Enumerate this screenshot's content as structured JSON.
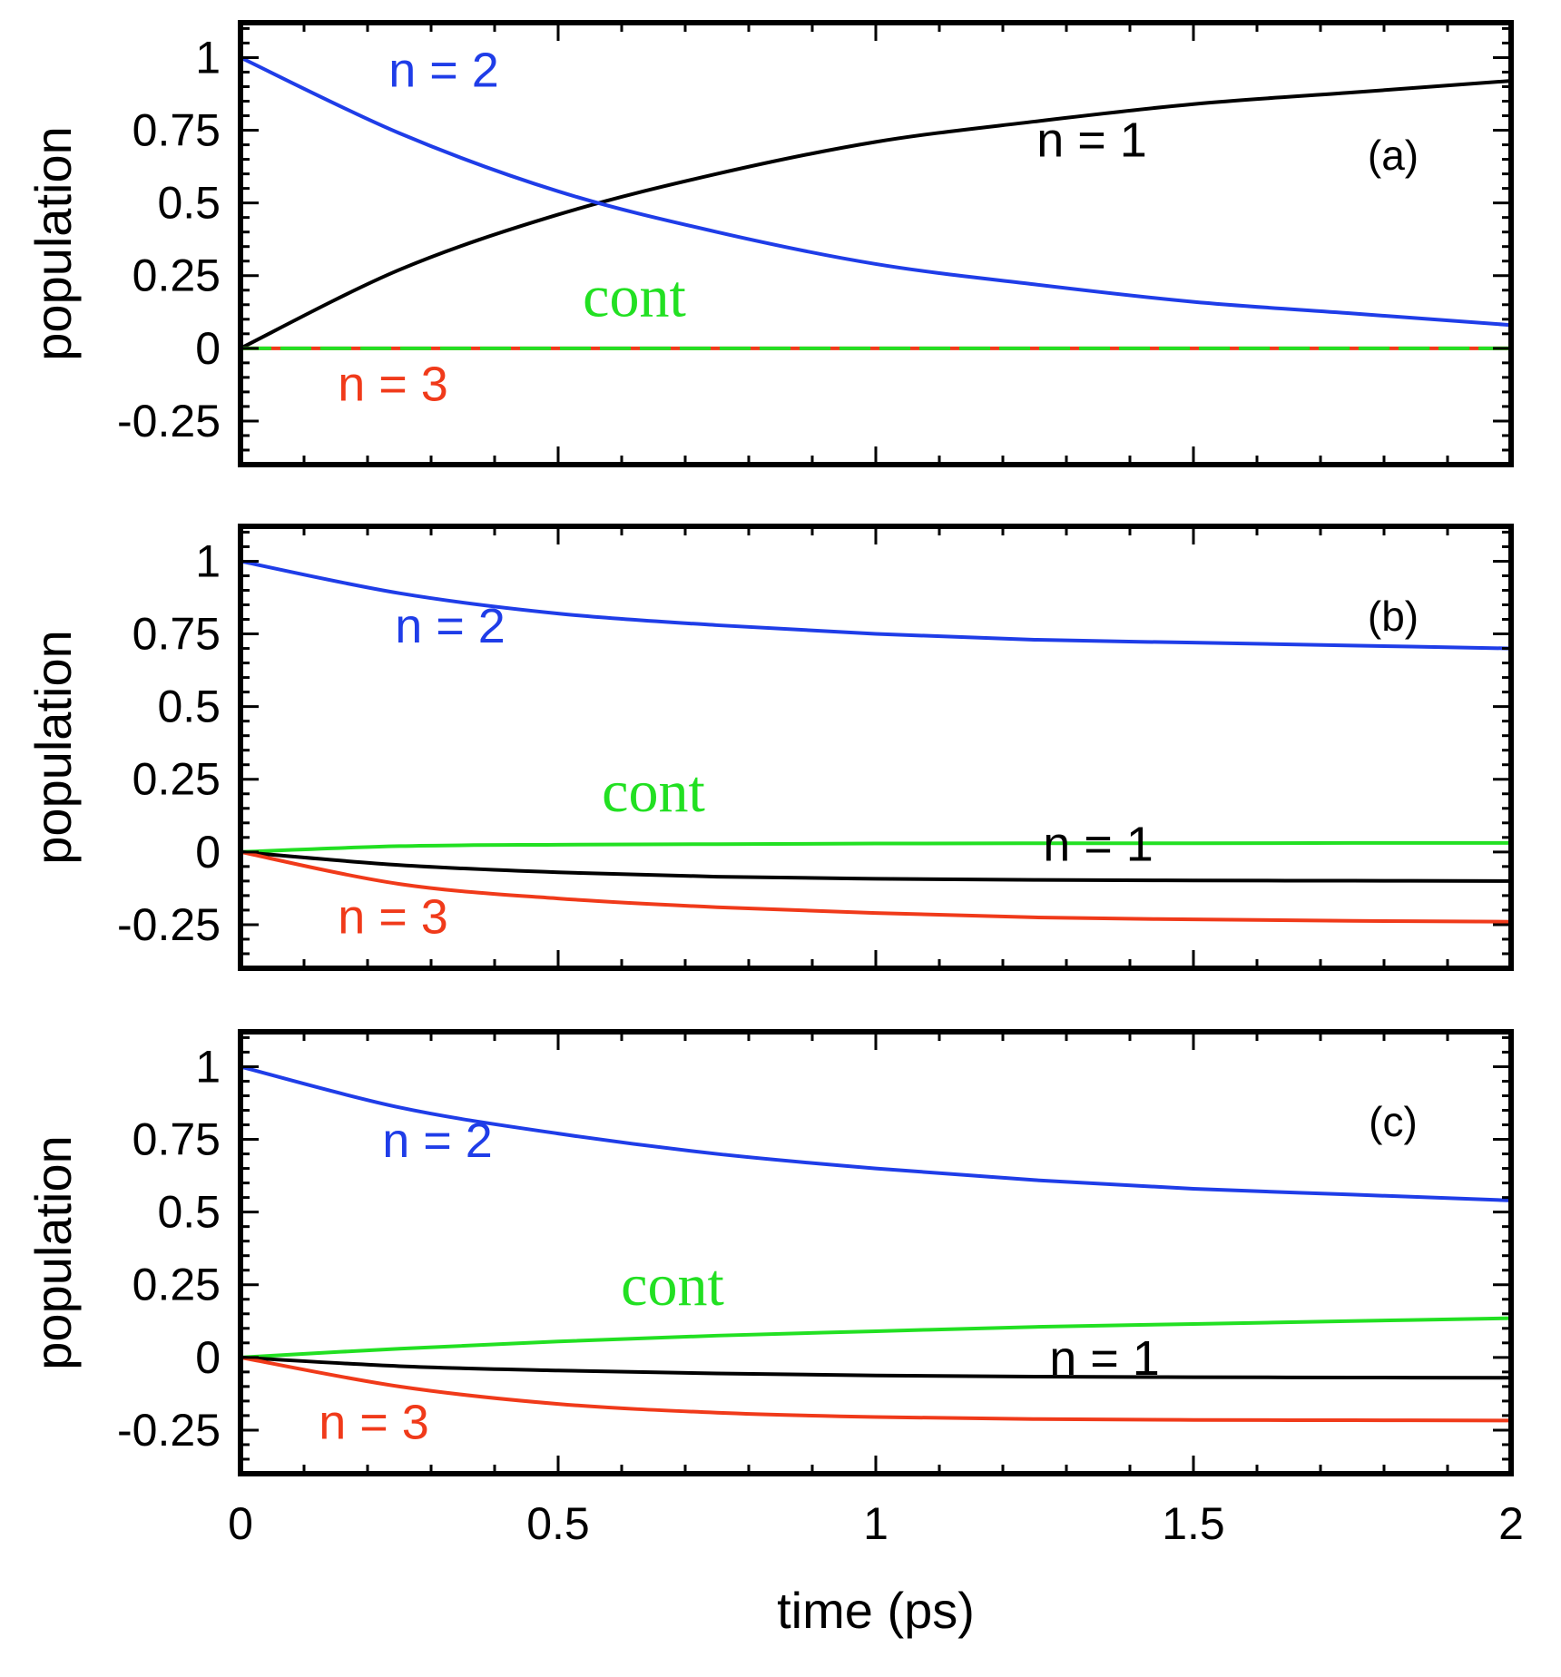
{
  "chart_data": [
    {
      "type": "line",
      "panel_label": "(a)",
      "xlabel": "time (ps)",
      "ylabel": "population",
      "xlim": [
        0,
        2
      ],
      "ylim": [
        -0.4,
        1.12
      ],
      "x_ticks": [
        "0",
        "0.5",
        "1",
        "1.5",
        "2"
      ],
      "y_ticks": [
        "-0.25",
        "0",
        "0.25",
        "0.5",
        "0.75",
        "1"
      ],
      "x": [
        0,
        0.25,
        0.5,
        0.75,
        1.0,
        1.25,
        1.5,
        1.75,
        2.0
      ],
      "series": [
        {
          "name": "n = 1",
          "color": "#000000",
          "values": [
            0,
            0.27,
            0.46,
            0.6,
            0.71,
            0.78,
            0.84,
            0.88,
            0.92
          ]
        },
        {
          "name": "n = 2",
          "color": "#1f3de8",
          "values": [
            1,
            0.74,
            0.54,
            0.4,
            0.29,
            0.22,
            0.16,
            0.12,
            0.08
          ]
        },
        {
          "name": "n = 3",
          "color": "#f03a1a",
          "values": [
            0,
            0,
            0,
            0,
            0,
            0,
            0,
            0,
            0
          ]
        },
        {
          "name": "cont",
          "color": "#22e022",
          "dashed": true,
          "values": [
            0,
            0,
            0,
            0,
            0,
            0,
            0,
            0,
            0
          ]
        }
      ],
      "annotations": [
        {
          "text": "n = 2",
          "series": "n = 2",
          "x": 0.32,
          "y": 0.9,
          "style": "sans"
        },
        {
          "text": "n = 1",
          "series": "n = 1",
          "x": 1.34,
          "y": 0.66,
          "style": "serif-sans"
        },
        {
          "text": "cont",
          "series": "cont",
          "x": 0.62,
          "y": 0.11,
          "style": "serif"
        },
        {
          "text": "n = 3",
          "series": "n = 3",
          "x": 0.24,
          "y": -0.18,
          "style": "sans"
        }
      ]
    },
    {
      "type": "line",
      "panel_label": "(b)",
      "xlabel": "time (ps)",
      "ylabel": "population",
      "xlim": [
        0,
        2
      ],
      "ylim": [
        -0.4,
        1.12
      ],
      "x_ticks": [
        "0",
        "0.5",
        "1",
        "1.5",
        "2"
      ],
      "y_ticks": [
        "-0.25",
        "0",
        "0.25",
        "0.5",
        "0.75",
        "1"
      ],
      "x": [
        0,
        0.25,
        0.5,
        0.75,
        1.0,
        1.25,
        1.5,
        1.75,
        2.0
      ],
      "series": [
        {
          "name": "n = 2",
          "color": "#1f3de8",
          "values": [
            1,
            0.89,
            0.82,
            0.78,
            0.75,
            0.73,
            0.72,
            0.71,
            0.7
          ]
        },
        {
          "name": "cont",
          "color": "#22e022",
          "values": [
            0,
            0.02,
            0.025,
            0.027,
            0.029,
            0.03,
            0.03,
            0.031,
            0.031
          ]
        },
        {
          "name": "n = 1",
          "color": "#000000",
          "values": [
            0,
            -0.045,
            -0.07,
            -0.085,
            -0.092,
            -0.096,
            -0.098,
            -0.099,
            -0.1
          ]
        },
        {
          "name": "n = 3",
          "color": "#f03a1a",
          "values": [
            0,
            -0.11,
            -0.16,
            -0.19,
            -0.21,
            -0.225,
            -0.232,
            -0.237,
            -0.24
          ]
        }
      ],
      "annotations": [
        {
          "text": "n = 2",
          "series": "n = 2",
          "x": 0.33,
          "y": 0.72,
          "style": "sans"
        },
        {
          "text": "cont",
          "series": "cont",
          "x": 0.65,
          "y": 0.14,
          "style": "serif"
        },
        {
          "text": "n = 1",
          "series": "n = 1",
          "x": 1.35,
          "y": -0.03,
          "style": "serif-sans"
        },
        {
          "text": "n = 3",
          "series": "n = 3",
          "x": 0.24,
          "y": -0.28,
          "style": "sans"
        }
      ]
    },
    {
      "type": "line",
      "panel_label": "(c)",
      "xlabel": "time (ps)",
      "ylabel": "population",
      "xlim": [
        0,
        2
      ],
      "ylim": [
        -0.4,
        1.12
      ],
      "x_ticks": [
        "0",
        "0.5",
        "1",
        "1.5",
        "2"
      ],
      "y_ticks": [
        "-0.25",
        "0",
        "0.25",
        "0.5",
        "0.75",
        "1"
      ],
      "x": [
        0,
        0.25,
        0.5,
        0.75,
        1.0,
        1.25,
        1.5,
        1.75,
        2.0
      ],
      "series": [
        {
          "name": "n = 2",
          "color": "#1f3de8",
          "values": [
            1,
            0.86,
            0.77,
            0.7,
            0.65,
            0.61,
            0.58,
            0.56,
            0.54
          ]
        },
        {
          "name": "cont",
          "color": "#22e022",
          "values": [
            0,
            0.03,
            0.055,
            0.075,
            0.09,
            0.105,
            0.115,
            0.125,
            0.135
          ]
        },
        {
          "name": "n = 1",
          "color": "#000000",
          "values": [
            0,
            -0.03,
            -0.045,
            -0.055,
            -0.062,
            -0.066,
            -0.068,
            -0.069,
            -0.07
          ]
        },
        {
          "name": "n = 3",
          "color": "#f03a1a",
          "values": [
            0,
            -0.1,
            -0.16,
            -0.19,
            -0.205,
            -0.212,
            -0.215,
            -0.216,
            -0.217
          ]
        }
      ],
      "annotations": [
        {
          "text": "n = 2",
          "series": "n = 2",
          "x": 0.31,
          "y": 0.69,
          "style": "sans"
        },
        {
          "text": "cont",
          "series": "cont",
          "x": 0.68,
          "y": 0.18,
          "style": "serif"
        },
        {
          "text": "n = 1",
          "series": "n = 1",
          "x": 1.36,
          "y": -0.06,
          "style": "serif-sans"
        },
        {
          "text": "n = 3",
          "series": "n = 3",
          "x": 0.21,
          "y": -0.28,
          "style": "sans"
        }
      ]
    }
  ]
}
